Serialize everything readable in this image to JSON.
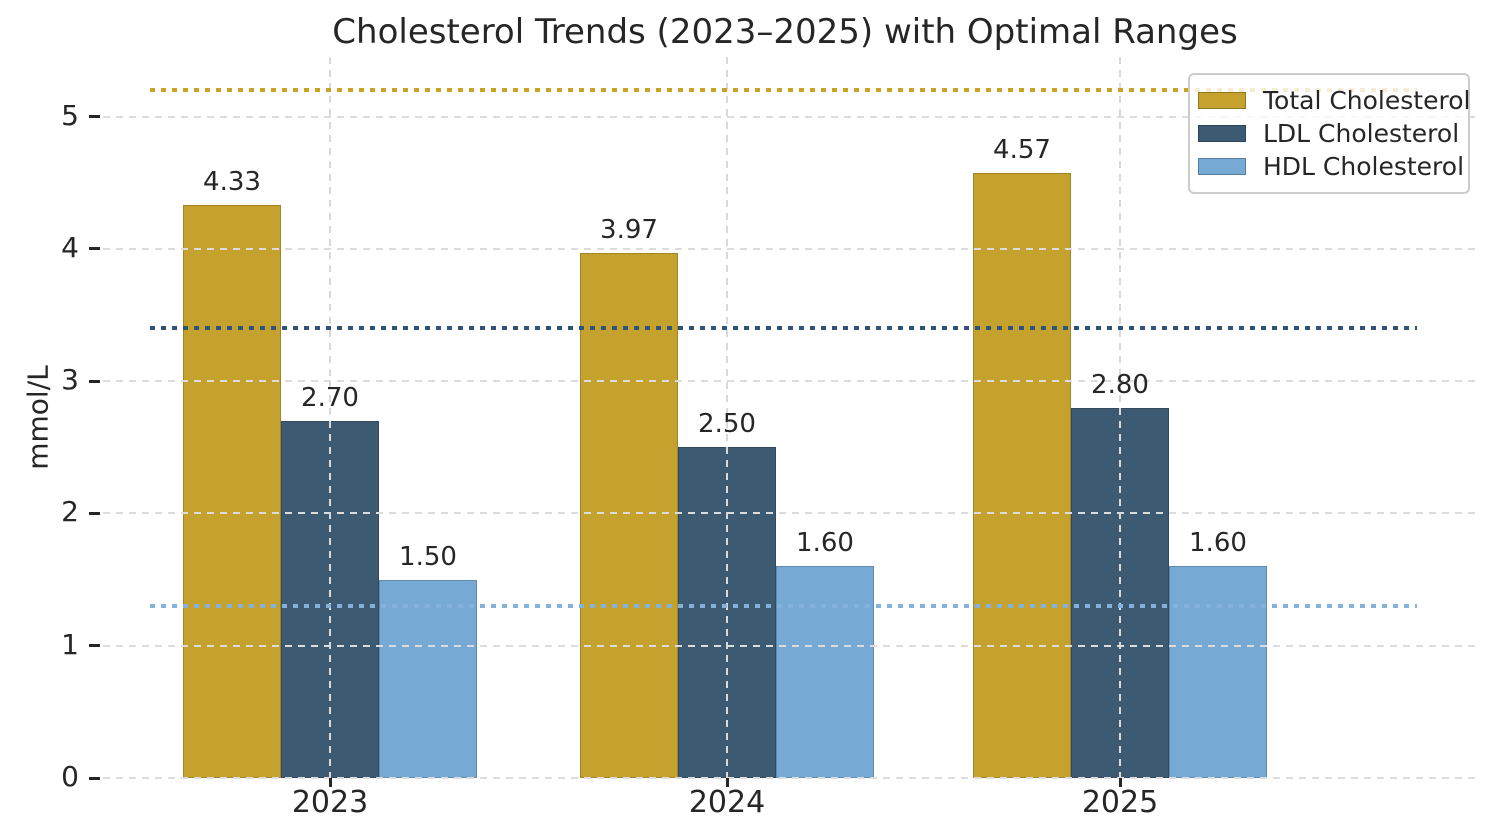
{
  "page": {
    "title": "Cholesterol Trends (2023–2025) with Optimal Ranges"
  },
  "chart_data": {
    "type": "bar",
    "title": "Cholesterol Trends (2023–2025) with Optimal Ranges",
    "categories": [
      "2023",
      "2024",
      "2025"
    ],
    "series": [
      {
        "name": "Total Cholesterol",
        "color": "#c5a12d",
        "values": [
          4.33,
          3.97,
          4.57
        ],
        "value_labels": [
          "4.33",
          "3.97",
          "4.57"
        ],
        "optimal_line": {
          "value": 5.2,
          "color": "#c9a227",
          "style": "dotted"
        }
      },
      {
        "name": "LDL Cholesterol",
        "color": "#3d5a73",
        "values": [
          2.7,
          2.5,
          2.8
        ],
        "value_labels": [
          "2.70",
          "2.50",
          "2.80"
        ],
        "optimal_line": {
          "value": 3.4,
          "color": "#2f5379",
          "style": "dotted"
        }
      },
      {
        "name": "HDL Cholesterol",
        "color": "#76aad4",
        "values": [
          1.5,
          1.6,
          1.6
        ],
        "value_labels": [
          "1.50",
          "1.60",
          "1.60"
        ],
        "optimal_line": {
          "value": 1.3,
          "color": "#84b2dd",
          "style": "dotted"
        }
      }
    ],
    "xlabel": "",
    "ylabel": "mmol/L",
    "ylim": [
      0,
      5.45
    ],
    "yticks": [
      0,
      1,
      2,
      3,
      4,
      5
    ],
    "grid": "dashed",
    "grid_over_bars": true,
    "legend_position": "upper right",
    "legend_entries": [
      "Total Cholesterol",
      "LDL Cholesterol",
      "HDL Cholesterol"
    ],
    "text_color": "#262626",
    "grid_color": "#dcdcdc",
    "legend_border_color": "#cccccc",
    "background_color": "#ffffff"
  }
}
